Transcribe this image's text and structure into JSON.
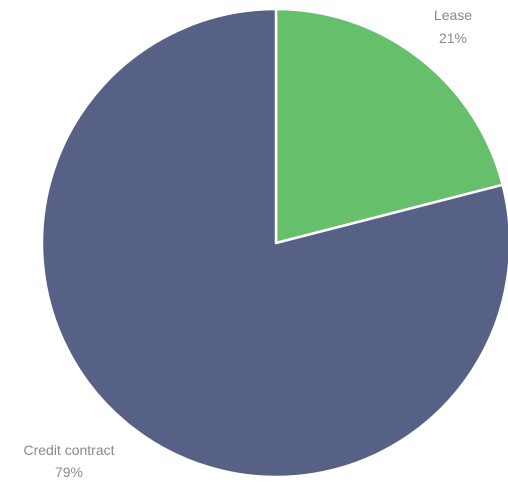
{
  "chart_data": {
    "type": "pie",
    "title": "",
    "slices": [
      {
        "label": "Lease",
        "percent_label": "21%",
        "value": 21,
        "color": "#66bf6b"
      },
      {
        "label": "Credit contract",
        "percent_label": "79%",
        "value": 79,
        "color": "#566185"
      }
    ],
    "start_angle_deg": 0,
    "direction": "clockwise",
    "slice_border_color": "#ffffff",
    "legend": "none"
  }
}
